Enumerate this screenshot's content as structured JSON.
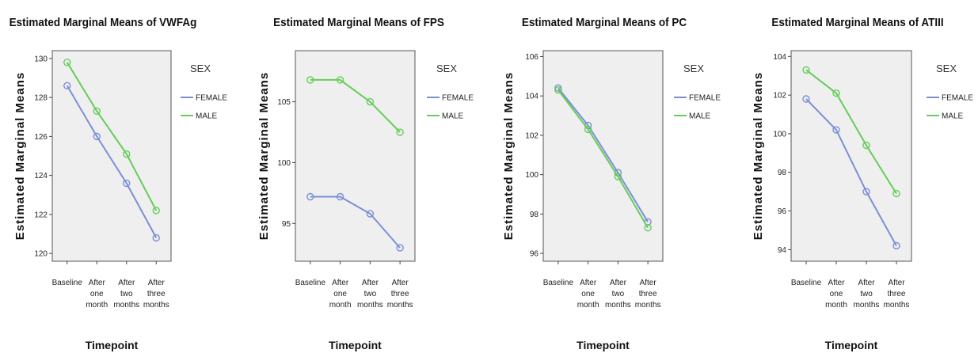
{
  "colors": {
    "female": "#7b8fd6",
    "male": "#66cc5a",
    "plot_bg": "#efefef"
  },
  "chart_data": [
    {
      "type": "line",
      "title": "Estimated Marginal Means of VWFAg",
      "xlabel": "Timepoint",
      "ylabel": "Estimated Marginal Means",
      "categories": [
        "Baseline",
        "After one month",
        "After two months",
        "After three months"
      ],
      "ylim": [
        119.6,
        130.4
      ],
      "yticks": [
        120,
        122,
        124,
        126,
        128,
        130
      ],
      "legend_title": "SEX",
      "series": [
        {
          "name": "FEMALE",
          "values": [
            128.6,
            126.0,
            123.6,
            120.8
          ]
        },
        {
          "name": "MALE",
          "values": [
            129.8,
            127.3,
            125.1,
            122.2
          ]
        }
      ]
    },
    {
      "type": "line",
      "title": "Estimated Marginal Means of FPS",
      "xlabel": "Timepoint",
      "ylabel": "Estimated Marginal Means",
      "categories": [
        "Baseline",
        "After one month",
        "After two months",
        "After three months"
      ],
      "ylim": [
        91.9,
        109.2
      ],
      "yticks": [
        95,
        100,
        105
      ],
      "legend_title": "SEX",
      "series": [
        {
          "name": "FEMALE",
          "values": [
            97.2,
            97.2,
            95.8,
            93.0
          ]
        },
        {
          "name": "MALE",
          "values": [
            106.8,
            106.8,
            105.0,
            102.5
          ]
        }
      ]
    },
    {
      "type": "line",
      "title": "Estimated Marginal Means of PC",
      "xlabel": "Timepoint",
      "ylabel": "Estimated Marginal Means",
      "categories": [
        "Baseline",
        "After one month",
        "After two months",
        "After three months"
      ],
      "ylim": [
        95.6,
        106.3
      ],
      "yticks": [
        96,
        98,
        100,
        102,
        104,
        106
      ],
      "legend_title": "SEX",
      "series": [
        {
          "name": "FEMALE",
          "values": [
            104.4,
            102.5,
            100.1,
            97.6
          ]
        },
        {
          "name": "MALE",
          "values": [
            104.3,
            102.3,
            99.9,
            97.3
          ]
        }
      ]
    },
    {
      "type": "line",
      "title": "Estimated Marginal Means of ATIII",
      "xlabel": "Timepoint",
      "ylabel": "Estimated Marginal Means",
      "categories": [
        "Baseline",
        "After one month",
        "After two months",
        "After three months"
      ],
      "ylim": [
        93.4,
        104.3
      ],
      "yticks": [
        94,
        96,
        98,
        100,
        102,
        104
      ],
      "legend_title": "SEX",
      "series": [
        {
          "name": "FEMALE",
          "values": [
            101.8,
            100.2,
            97.0,
            94.2
          ]
        },
        {
          "name": "MALE",
          "values": [
            103.3,
            102.1,
            99.4,
            96.9
          ]
        }
      ]
    }
  ]
}
